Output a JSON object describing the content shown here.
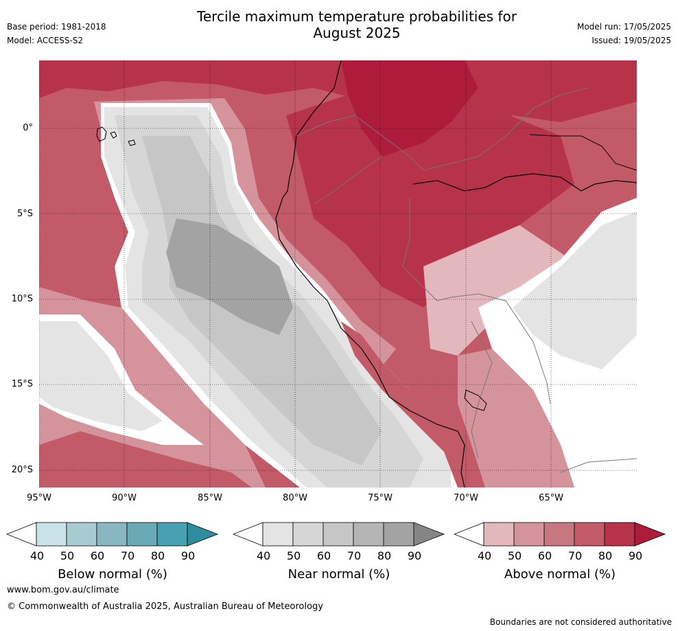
{
  "title_line1": "Tercile maximum temperature probabilities for",
  "title_line2": "August 2025",
  "base_period": "Base period: 1981-2018",
  "model": "Model: ACCESS-S2",
  "model_run": "Model run: 17/05/2025",
  "issued": "Issued: 19/05/2025",
  "lat_labels": [
    "0°",
    "5°S",
    "10°S",
    "15°S",
    "20°S"
  ],
  "lon_labels": [
    "95°W",
    "90°W",
    "85°W",
    "80°W",
    "75°W",
    "70°W",
    "65°W"
  ],
  "colorbars": [
    {
      "label": "Below normal (%)",
      "ticks": [
        "40",
        "50",
        "60",
        "70",
        "80",
        "90"
      ],
      "colors": [
        "#ffffff",
        "#c9e2e7",
        "#a8cbd1",
        "#88b7c1",
        "#6aaab5",
        "#47a1b0",
        "#2f8d9e"
      ]
    },
    {
      "label": "Near normal (%)",
      "ticks": [
        "40",
        "50",
        "60",
        "70",
        "80",
        "90"
      ],
      "colors": [
        "#ffffff",
        "#e4e4e4",
        "#d6d6d6",
        "#c6c6c6",
        "#b5b5b5",
        "#a3a3a3",
        "#858585"
      ]
    },
    {
      "label": "Above normal (%)",
      "ticks": [
        "40",
        "50",
        "60",
        "70",
        "80",
        "90"
      ],
      "colors": [
        "#ffffff",
        "#e2b8bd",
        "#d5949b",
        "#c87680",
        "#c25b67",
        "#b7334a",
        "#ad1c3b"
      ]
    }
  ],
  "website": "www.bom.gov.au/climate",
  "copyright": "© Commonwealth of Australia 2025, Australian Bureau of Meteorology",
  "disclaimer": "Boundaries are not considered authoritative"
}
